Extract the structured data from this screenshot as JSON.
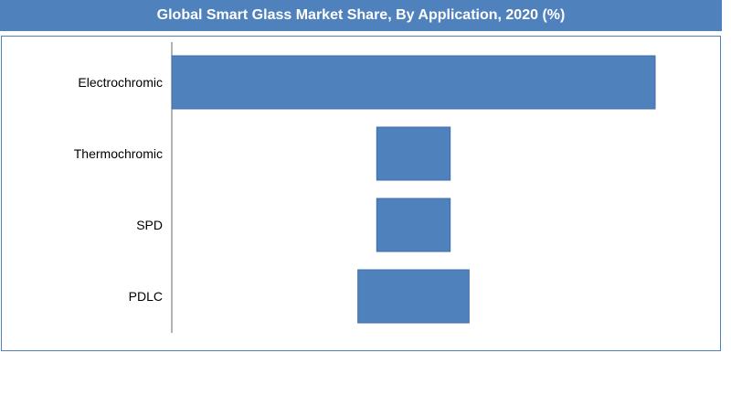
{
  "title": "Global Smart Glass  Market Share, By Application, 2020 (%)",
  "colors": {
    "title_bg": "#4f81bd",
    "bar_fill": "#4f81bd",
    "bar_stroke": "#3f6fa8",
    "frame": "#4f81bd",
    "axis": "#808080"
  },
  "chart_data": {
    "type": "bar",
    "orientation": "horizontal",
    "title": "Global Smart Glass  Market Share, By Application, 2020 (%)",
    "categories": [
      "Electrochromic",
      "Thermochromic",
      "SPD",
      "PDLC"
    ],
    "ranges": [
      {
        "category": "Electrochromic",
        "start": 0,
        "end": 100
      },
      {
        "category": "Thermochromic",
        "start": 42.4,
        "end": 57.6
      },
      {
        "category": "SPD",
        "start": 42.4,
        "end": 57.6
      },
      {
        "category": "PDLC",
        "start": 38.5,
        "end": 61.5
      }
    ],
    "values": [
      100,
      15.2,
      15.2,
      23
    ],
    "xlim": [
      0,
      100
    ],
    "xlabel": "",
    "ylabel": "",
    "grid": false,
    "legend": "none"
  }
}
